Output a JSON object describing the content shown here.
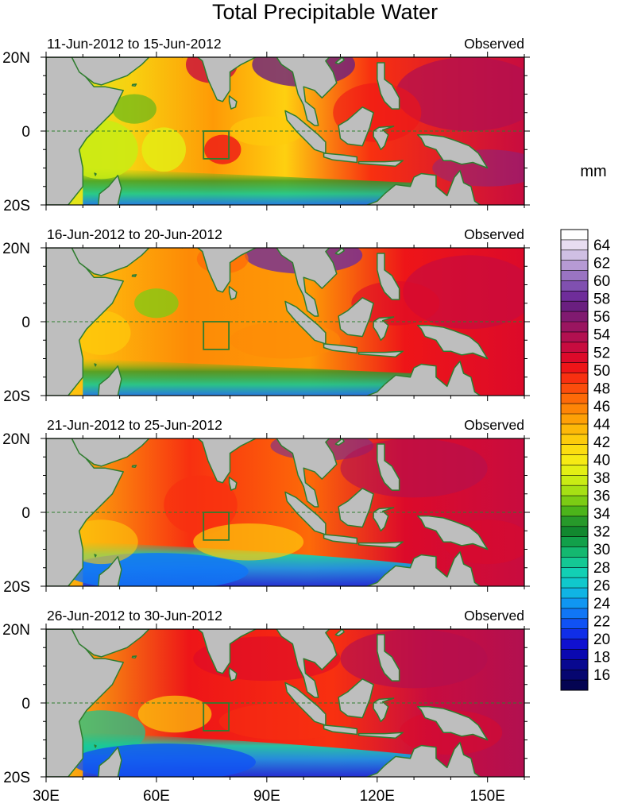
{
  "title": "Total Precipitable Water",
  "units_label": "mm",
  "panels": [
    {
      "date_range": "11-Jun-2012 to 15-Jun-2012",
      "status": "Observed"
    },
    {
      "date_range": "16-Jun-2012 to 20-Jun-2012",
      "status": "Observed"
    },
    {
      "date_range": "21-Jun-2012 to 25-Jun-2012",
      "status": "Observed"
    },
    {
      "date_range": "26-Jun-2012 to 30-Jun-2012",
      "status": "Observed"
    }
  ],
  "lat_labels": [
    "20N",
    "0",
    "20S"
  ],
  "lon_labels": [
    "30E",
    "60E",
    "90E",
    "120E",
    "150E"
  ],
  "colorbar": {
    "labels": [
      "64",
      "62",
      "60",
      "58",
      "56",
      "54",
      "52",
      "50",
      "48",
      "46",
      "44",
      "42",
      "40",
      "38",
      "36",
      "34",
      "32",
      "30",
      "28",
      "26",
      "24",
      "22",
      "20",
      "18",
      "16"
    ],
    "colors": [
      "#fefefe",
      "#e8ddf0",
      "#cfbfe3",
      "#b69ad4",
      "#9a74c2",
      "#8050b0",
      "#6f2d9a",
      "#6a1f80",
      "#801a70",
      "#9a1560",
      "#b21050",
      "#c80c3f",
      "#dc0a2a",
      "#ee1518",
      "#f83010",
      "#fb4d0c",
      "#fd6a08",
      "#fe8506",
      "#fea006",
      "#fdb808",
      "#fdcb0b",
      "#fcdd10",
      "#f6ea14",
      "#e3ef14",
      "#c9ec14",
      "#a6e014",
      "#7ccc14",
      "#4cb41a",
      "#27992a",
      "#12882f",
      "#12a04a",
      "#14b870",
      "#14c894",
      "#12d0b4",
      "#10c8cc",
      "#10b4e4",
      "#1096f2",
      "#1076f6",
      "#1052f4",
      "#102ee8",
      "#1010d0",
      "#0a08b0",
      "#080890",
      "#060670",
      "#040452"
    ]
  }
}
